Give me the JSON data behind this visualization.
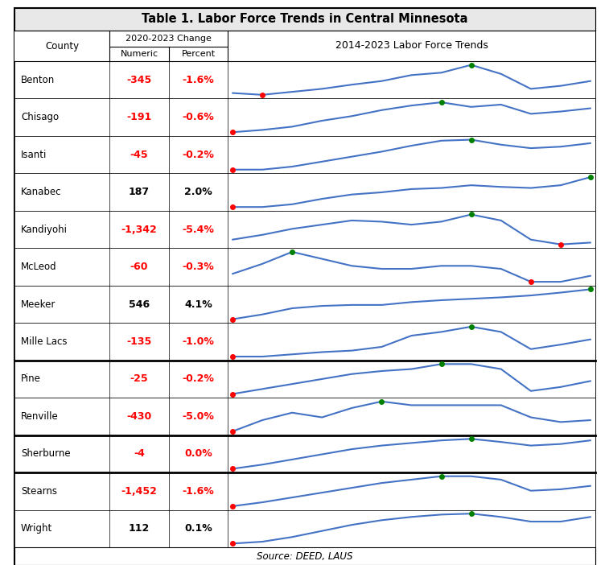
{
  "title": "Table 1. Labor Force Trends in Central Minnesota",
  "col1_header": "County",
  "col2_header": "2020-2023 Change",
  "col2a_header": "Numeric",
  "col2b_header": "Percent",
  "col3_header": "2014-2023 Labor Force Trends",
  "source": "Source: DEED, LAUS",
  "counties": [
    "Benton",
    "Chisago",
    "Isanti",
    "Kanabec",
    "Kandiyohi",
    "McLeod",
    "Meeker",
    "Mille Lacs",
    "Pine",
    "Renville",
    "Sherburne",
    "Stearns",
    "Wright"
  ],
  "numeric": [
    "-345",
    "-191",
    "-45",
    "187",
    "-1,342",
    "-60",
    "546",
    "-135",
    "-25",
    "-430",
    "-4",
    "-1,452",
    "112"
  ],
  "percent": [
    "-1.6%",
    "-0.6%",
    "-0.2%",
    "2.0%",
    "-5.4%",
    "-0.3%",
    "4.1%",
    "-1.0%",
    "-0.2%",
    "-5.0%",
    "0.0%",
    "-1.6%",
    "0.1%"
  ],
  "numeric_color": [
    "red",
    "red",
    "red",
    "black",
    "red",
    "red",
    "black",
    "red",
    "red",
    "red",
    "red",
    "red",
    "black"
  ],
  "percent_color": [
    "red",
    "red",
    "red",
    "black",
    "red",
    "red",
    "black",
    "red",
    "red",
    "red",
    "red",
    "red",
    "black"
  ],
  "sparklines": {
    "Benton": [
      0.48,
      0.45,
      0.5,
      0.55,
      0.62,
      0.68,
      0.78,
      0.82,
      0.95,
      0.8,
      0.55,
      0.6,
      0.68
    ],
    "Chisago": [
      0.1,
      0.15,
      0.22,
      0.35,
      0.45,
      0.58,
      0.68,
      0.75,
      0.65,
      0.7,
      0.5,
      0.55,
      0.62
    ],
    "Isanti": [
      0.12,
      0.12,
      0.18,
      0.28,
      0.38,
      0.48,
      0.6,
      0.7,
      0.72,
      0.62,
      0.55,
      0.58,
      0.65
    ],
    "Kanabec": [
      0.15,
      0.15,
      0.2,
      0.3,
      0.38,
      0.42,
      0.48,
      0.5,
      0.55,
      0.52,
      0.5,
      0.55,
      0.7
    ],
    "Kandiyohi": [
      0.3,
      0.38,
      0.48,
      0.55,
      0.62,
      0.6,
      0.55,
      0.6,
      0.72,
      0.62,
      0.3,
      0.22,
      0.25
    ],
    "McLeod": [
      0.5,
      0.6,
      0.72,
      0.65,
      0.58,
      0.55,
      0.55,
      0.58,
      0.58,
      0.55,
      0.42,
      0.42,
      0.48
    ],
    "Meeker": [
      0.12,
      0.22,
      0.35,
      0.4,
      0.42,
      0.42,
      0.48,
      0.52,
      0.55,
      0.58,
      0.62,
      0.68,
      0.75
    ],
    "Mille Lacs": [
      0.22,
      0.22,
      0.25,
      0.28,
      0.3,
      0.35,
      0.5,
      0.55,
      0.62,
      0.55,
      0.32,
      0.38,
      0.45
    ],
    "Pine": [
      0.35,
      0.4,
      0.45,
      0.5,
      0.55,
      0.58,
      0.6,
      0.65,
      0.65,
      0.6,
      0.38,
      0.42,
      0.48
    ],
    "Renville": [
      0.3,
      0.42,
      0.5,
      0.45,
      0.55,
      0.62,
      0.58,
      0.58,
      0.58,
      0.58,
      0.45,
      0.4,
      0.42
    ],
    "Sherburne": [
      0.1,
      0.18,
      0.28,
      0.38,
      0.48,
      0.55,
      0.6,
      0.65,
      0.68,
      0.62,
      0.55,
      0.58,
      0.65
    ],
    "Stearns": [
      0.1,
      0.18,
      0.28,
      0.38,
      0.48,
      0.58,
      0.65,
      0.72,
      0.72,
      0.65,
      0.42,
      0.45,
      0.52
    ],
    "Wright": [
      0.08,
      0.12,
      0.22,
      0.35,
      0.48,
      0.58,
      0.65,
      0.7,
      0.72,
      0.65,
      0.55,
      0.55,
      0.65
    ]
  },
  "thick_borders_after": [
    7,
    9,
    10
  ],
  "line_color": "#4472C4",
  "dot_min_color": "red",
  "dot_max_color": "green",
  "background_color": "#ffffff",
  "title_bg": "#e8e8e8"
}
